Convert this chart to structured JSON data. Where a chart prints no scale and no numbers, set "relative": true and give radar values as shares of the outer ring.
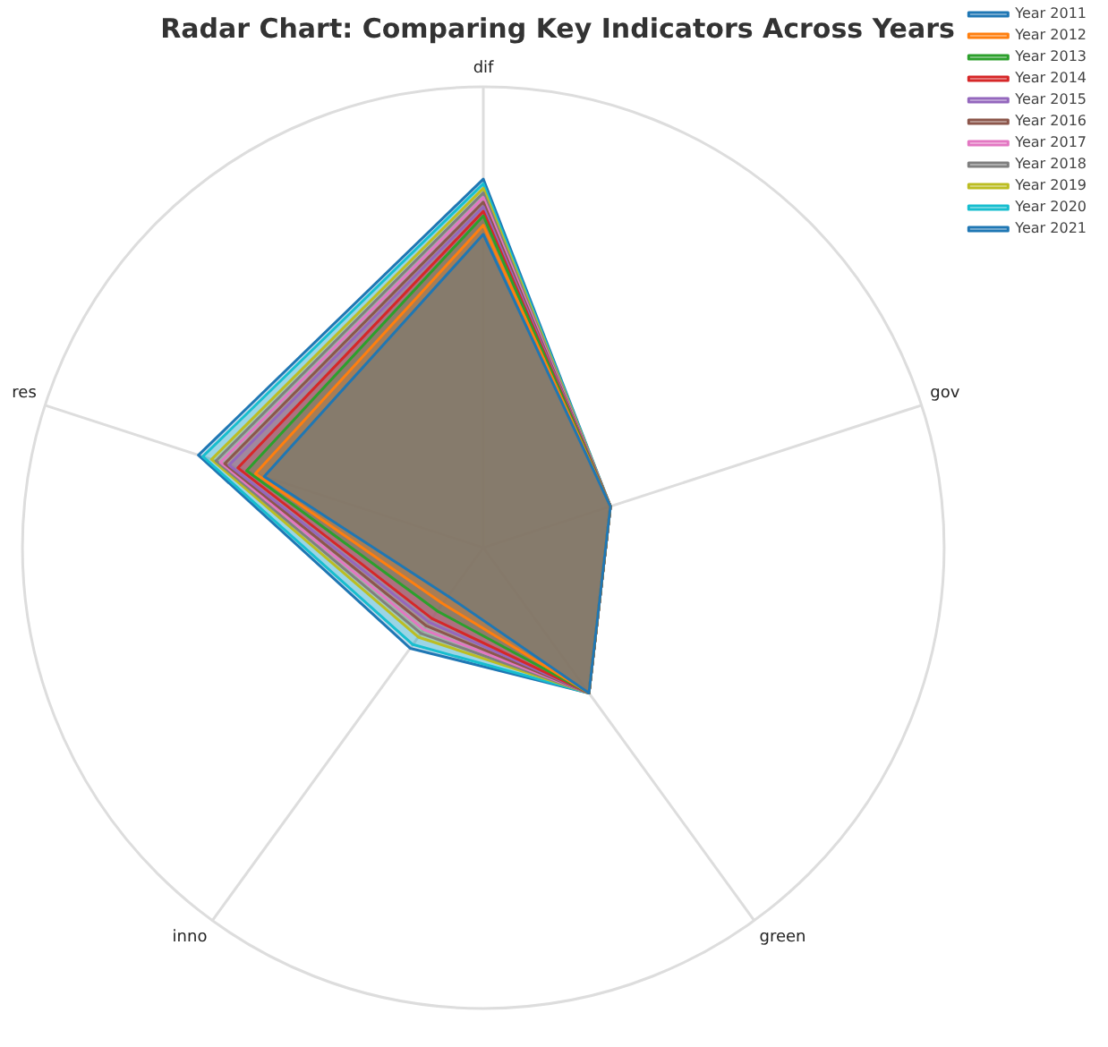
{
  "chart_data": {
    "type": "radar",
    "title": "Radar Chart: Comparing Key Indicators Across Years",
    "relative": true,
    "grid": true,
    "legend": "top right",
    "categories": [
      "dif",
      "gov",
      "green",
      "inno",
      "res"
    ],
    "series": [
      {
        "name": "Year 2011",
        "color": "#1f77b4",
        "values": [
          0.68,
          0.29,
          0.39,
          0.13,
          0.5
        ]
      },
      {
        "name": "Year 2012",
        "color": "#ff7f0e",
        "values": [
          0.7,
          0.29,
          0.39,
          0.15,
          0.52
        ]
      },
      {
        "name": "Year 2013",
        "color": "#2ca02c",
        "values": [
          0.72,
          0.29,
          0.39,
          0.17,
          0.54
        ]
      },
      {
        "name": "Year 2014",
        "color": "#d62728",
        "values": [
          0.73,
          0.29,
          0.39,
          0.19,
          0.56
        ]
      },
      {
        "name": "Year 2015",
        "color": "#9467bd",
        "values": [
          0.74,
          0.29,
          0.39,
          0.2,
          0.58
        ]
      },
      {
        "name": "Year 2016",
        "color": "#8c564b",
        "values": [
          0.75,
          0.29,
          0.39,
          0.21,
          0.59
        ]
      },
      {
        "name": "Year 2017",
        "color": "#e377c2",
        "values": [
          0.76,
          0.29,
          0.39,
          0.22,
          0.6
        ]
      },
      {
        "name": "Year 2018",
        "color": "#7f7f7f",
        "values": [
          0.77,
          0.29,
          0.39,
          0.23,
          0.61
        ]
      },
      {
        "name": "Year 2019",
        "color": "#bcbd22",
        "values": [
          0.78,
          0.29,
          0.39,
          0.24,
          0.62
        ]
      },
      {
        "name": "Year 2020",
        "color": "#17becf",
        "values": [
          0.79,
          0.29,
          0.39,
          0.26,
          0.64
        ]
      },
      {
        "name": "Year 2021",
        "color": "#1f77b4",
        "values": [
          0.8,
          0.29,
          0.39,
          0.27,
          0.65
        ]
      }
    ]
  }
}
